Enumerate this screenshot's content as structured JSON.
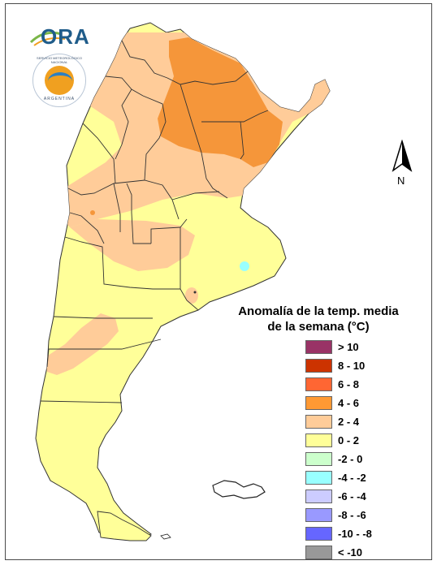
{
  "map": {
    "title_line1": "Anomalía de la temp. media",
    "title_line2": "de la semana (°C)",
    "north_label": "N",
    "logos": {
      "ora_text": "ORA",
      "smn_badge_text": "SERVICIO METEOROLÓGICO NACIONAL",
      "smn_country": "ARGENTINA"
    },
    "legend": [
      {
        "label": "> 10",
        "color": "#993366"
      },
      {
        "label": "8 - 10",
        "color": "#cc3300"
      },
      {
        "label": "6 - 8",
        "color": "#ff6633"
      },
      {
        "label": "4 - 6",
        "color": "#ff9933"
      },
      {
        "label": "2 - 4",
        "color": "#ffcc99"
      },
      {
        "label": "0 - 2",
        "color": "#ffff99"
      },
      {
        "label": "-2 - 0",
        "color": "#ccffcc"
      },
      {
        "label": "-4 - -2",
        "color": "#99ffff"
      },
      {
        "label": "-6 - -4",
        "color": "#ccccff"
      },
      {
        "label": "-8 - -6",
        "color": "#9999ff"
      },
      {
        "label": "-10 - -8",
        "color": "#6666ff"
      },
      {
        "label": "< -10",
        "color": "#999999"
      }
    ]
  }
}
